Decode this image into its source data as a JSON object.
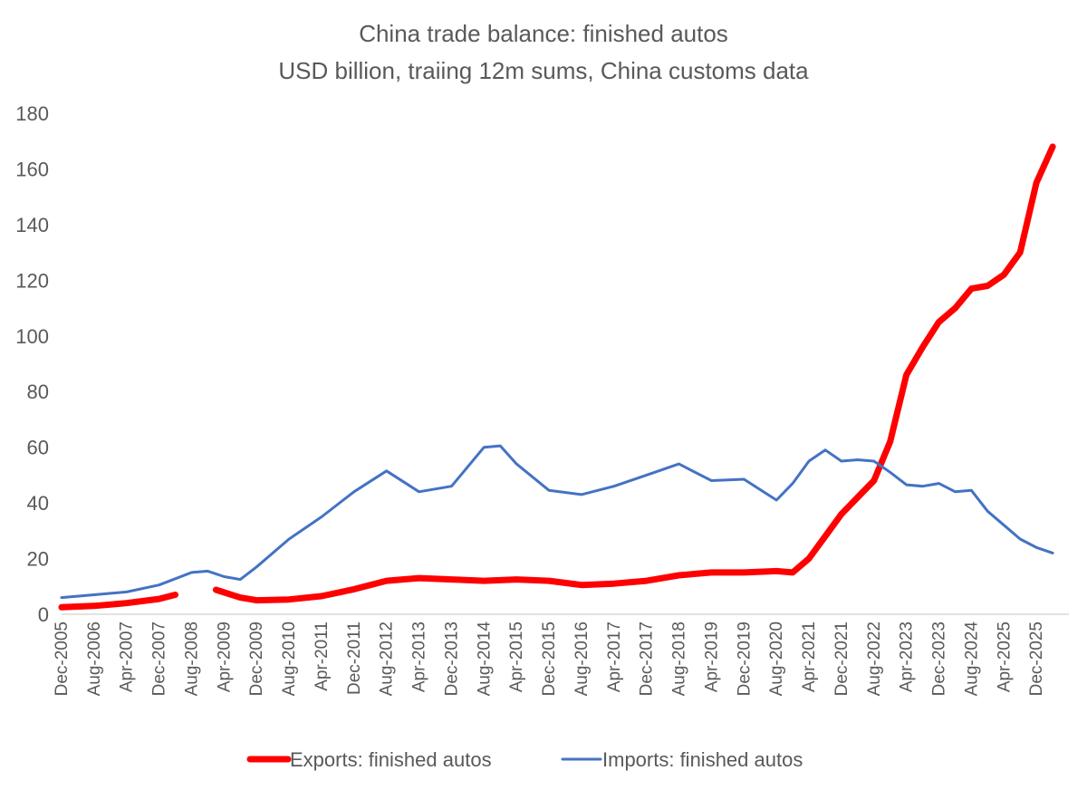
{
  "chart_data": {
    "type": "line",
    "title": "China trade balance: finished autos",
    "subtitle": "USD billion, traiing 12m sums, China customs data",
    "xlabel": "",
    "ylabel": "",
    "ylim": [
      0,
      180
    ],
    "y_ticks": [
      "0",
      "20",
      "40",
      "60",
      "80",
      "100",
      "120",
      "140",
      "160",
      "180"
    ],
    "x_tick_labels": [
      "Dec-2005",
      "Aug-2006",
      "Apr-2007",
      "Dec-2007",
      "Aug-2008",
      "Apr-2009",
      "Dec-2009",
      "Aug-2010",
      "Apr-2011",
      "Dec-2011",
      "Aug-2012",
      "Apr-2013",
      "Dec-2013",
      "Aug-2014",
      "Apr-2015",
      "Dec-2015",
      "Aug-2016",
      "Apr-2017",
      "Dec-2017",
      "Aug-2018",
      "Apr-2019",
      "Dec-2019",
      "Aug-2020",
      "Apr-2021",
      "Dec-2021",
      "Aug-2022",
      "Apr-2023",
      "Dec-2023",
      "Aug-2024",
      "Apr-2025",
      "Dec-2025"
    ],
    "x_range": [
      "Dec-2005",
      "Aug-2026"
    ],
    "grid": false,
    "legend": "bottom",
    "series": [
      {
        "name": "Exports: finished autos",
        "color": "#ff0000",
        "points": [
          [
            "Dec-2005",
            2.5
          ],
          [
            "Aug-2006",
            3.0
          ],
          [
            "Apr-2007",
            4.0
          ],
          [
            "Dec-2007",
            5.5
          ],
          [
            "Apr-2008",
            7.0
          ],
          [
            null,
            null
          ],
          [
            "Feb-2009",
            8.8
          ],
          [
            "Aug-2009",
            6.0
          ],
          [
            "Dec-2009",
            5.0
          ],
          [
            "Aug-2010",
            5.3
          ],
          [
            "Apr-2011",
            6.5
          ],
          [
            "Dec-2011",
            9.0
          ],
          [
            "Aug-2012",
            12.0
          ],
          [
            "Apr-2013",
            13.0
          ],
          [
            "Dec-2013",
            12.5
          ],
          [
            "Aug-2014",
            12.0
          ],
          [
            "Apr-2015",
            12.5
          ],
          [
            "Dec-2015",
            12.0
          ],
          [
            "Aug-2016",
            10.5
          ],
          [
            "Apr-2017",
            11.0
          ],
          [
            "Dec-2017",
            12.0
          ],
          [
            "Aug-2018",
            14.0
          ],
          [
            "Apr-2019",
            15.0
          ],
          [
            "Dec-2019",
            15.0
          ],
          [
            "Aug-2020",
            15.5
          ],
          [
            "Dec-2020",
            15.0
          ],
          [
            "Apr-2021",
            20.0
          ],
          [
            "Aug-2021",
            28.0
          ],
          [
            "Dec-2021",
            36.0
          ],
          [
            "Apr-2022",
            42.0
          ],
          [
            "Aug-2022",
            48.0
          ],
          [
            "Dec-2022",
            62.0
          ],
          [
            "Apr-2023",
            86.0
          ],
          [
            "Aug-2023",
            96.0
          ],
          [
            "Dec-2023",
            105.0
          ],
          [
            "Apr-2024",
            110.0
          ],
          [
            "Aug-2024",
            117.0
          ],
          [
            "Dec-2024",
            118.0
          ],
          [
            "Apr-2025",
            122.0
          ],
          [
            "Aug-2025",
            130.0
          ],
          [
            "Dec-2025",
            155.0
          ],
          [
            "Apr-2026",
            168.0
          ]
        ]
      },
      {
        "name": "Imports: finished autos",
        "color": "#4472c4",
        "points": [
          [
            "Dec-2005",
            6.0
          ],
          [
            "Aug-2006",
            7.0
          ],
          [
            "Apr-2007",
            8.0
          ],
          [
            "Dec-2007",
            10.5
          ],
          [
            "Aug-2008",
            15.0
          ],
          [
            "Dec-2008",
            15.5
          ],
          [
            "Apr-2009",
            13.5
          ],
          [
            "Aug-2009",
            12.5
          ],
          [
            "Dec-2009",
            17.0
          ],
          [
            "Aug-2010",
            27.0
          ],
          [
            "Apr-2011",
            35.0
          ],
          [
            "Dec-2011",
            44.0
          ],
          [
            "Aug-2012",
            51.5
          ],
          [
            "Apr-2013",
            44.0
          ],
          [
            "Dec-2013",
            46.0
          ],
          [
            "Aug-2014",
            60.0
          ],
          [
            "Dec-2014",
            60.5
          ],
          [
            "Apr-2015",
            54.0
          ],
          [
            "Dec-2015",
            44.5
          ],
          [
            "Aug-2016",
            43.0
          ],
          [
            "Apr-2017",
            46.0
          ],
          [
            "Dec-2017",
            50.0
          ],
          [
            "Aug-2018",
            54.0
          ],
          [
            "Apr-2019",
            48.0
          ],
          [
            "Dec-2019",
            48.5
          ],
          [
            "Aug-2020",
            41.0
          ],
          [
            "Dec-2020",
            47.0
          ],
          [
            "Apr-2021",
            55.0
          ],
          [
            "Aug-2021",
            59.0
          ],
          [
            "Dec-2021",
            55.0
          ],
          [
            "Apr-2022",
            55.5
          ],
          [
            "Aug-2022",
            55.0
          ],
          [
            "Dec-2022",
            51.0
          ],
          [
            "Apr-2023",
            46.5
          ],
          [
            "Aug-2023",
            46.0
          ],
          [
            "Dec-2023",
            47.0
          ],
          [
            "Apr-2024",
            44.0
          ],
          [
            "Aug-2024",
            44.5
          ],
          [
            "Dec-2024",
            37.0
          ],
          [
            "Apr-2025",
            32.0
          ],
          [
            "Aug-2025",
            27.0
          ],
          [
            "Dec-2025",
            24.0
          ],
          [
            "Apr-2026",
            22.0
          ]
        ]
      }
    ]
  }
}
